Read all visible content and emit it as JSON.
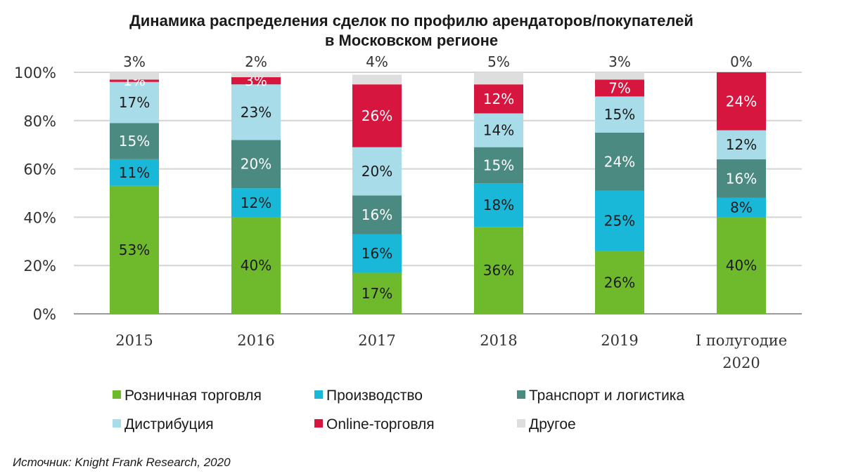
{
  "chart_data": {
    "type": "bar",
    "stacked": true,
    "title_line1": "Динамика распределения сделок по профилю арендаторов/покупателей",
    "title_line2": "в Московском регионе",
    "categories": [
      [
        "2015"
      ],
      [
        "2016"
      ],
      [
        "2017"
      ],
      [
        "2018"
      ],
      [
        "2019"
      ],
      [
        "I полугодие",
        "2020"
      ]
    ],
    "y_ticks": [
      "0%",
      "20%",
      "40%",
      "60%",
      "80%",
      "100%"
    ],
    "ylim": [
      0,
      100
    ],
    "grid": true,
    "legend_position": "bottom",
    "series": [
      {
        "name": "Розничная торговля",
        "color": "#6fba2c",
        "label_color": "#1a1a1a",
        "values": [
          53,
          40,
          17,
          36,
          26,
          40
        ],
        "labels": [
          "53%",
          "40%",
          "17%",
          "36%",
          "26%",
          "40%"
        ]
      },
      {
        "name": "Производство",
        "color": "#1ab8d8",
        "label_color": "#1a1a1a",
        "values": [
          11,
          12,
          16,
          18,
          25,
          8
        ],
        "labels": [
          "11%",
          "12%",
          "16%",
          "18%",
          "25%",
          "8%"
        ]
      },
      {
        "name": "Транспорт и логистика",
        "color": "#4a8a80",
        "label_color": "#ffffff",
        "values": [
          15,
          20,
          16,
          15,
          24,
          16
        ],
        "labels": [
          "15%",
          "20%",
          "16%",
          "15%",
          "24%",
          "16%"
        ]
      },
      {
        "name": "Дистрибуция",
        "color": "#a8dce8",
        "label_color": "#1a1a1a",
        "values": [
          17,
          23,
          20,
          14,
          15,
          12
        ],
        "labels": [
          "17%",
          "23%",
          "20%",
          "14%",
          "15%",
          "12%"
        ]
      },
      {
        "name": "Online-торговля",
        "color": "#d6163e",
        "label_color": "#ffffff",
        "values": [
          1,
          3,
          26,
          12,
          7,
          24
        ],
        "labels": [
          "1%",
          "3%",
          "26%",
          "12%",
          "7%",
          "24%"
        ]
      },
      {
        "name": "Другое",
        "color": "#dedede",
        "label_color": "#333333",
        "values": [
          3,
          2,
          4,
          5,
          3,
          0
        ],
        "labels": [
          "3%",
          "2%",
          "4%",
          "5%",
          "3%",
          "0%"
        ]
      }
    ],
    "source": "Источник: Knight Frank Research, 2020"
  }
}
